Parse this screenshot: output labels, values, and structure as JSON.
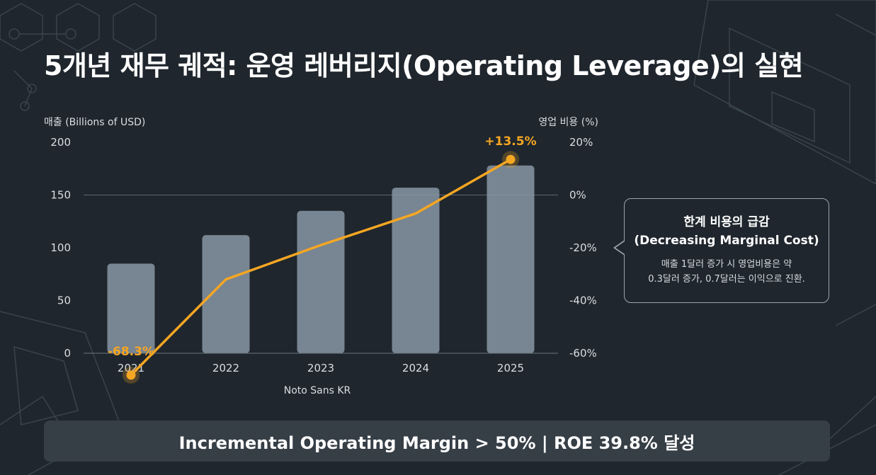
{
  "title": "5개년 재무 궤적: 운영 레버리지(Operating Leverage)의 실현",
  "colors": {
    "background": "#1f262d",
    "bar": "#8896a4",
    "line": "#f5a623",
    "banner": "#363e46"
  },
  "chart_data": {
    "type": "bar+line",
    "categories": [
      "2021",
      "2022",
      "2023",
      "2024",
      "2025"
    ],
    "series": [
      {
        "name": "매출",
        "axis": "left",
        "type": "bar",
        "values": [
          85,
          112,
          135,
          157,
          178
        ]
      },
      {
        "name": "영업 비용",
        "axis": "right",
        "type": "line",
        "values": [
          -68.3,
          -32,
          -19,
          -7,
          13.5
        ]
      }
    ],
    "left_axis": {
      "label": "매출 (Billions of USD)",
      "ylim": [
        0,
        200
      ],
      "ticks": [
        "0",
        "50",
        "100",
        "150",
        "200"
      ]
    },
    "right_axis": {
      "label": "영업 비용 (%)",
      "ylim": [
        -60,
        20
      ],
      "ticks": [
        "-60%",
        "-40%",
        "-20%",
        "0%",
        "20%"
      ]
    },
    "annotations": [
      {
        "category": "2021",
        "text": "-68.3%"
      },
      {
        "category": "2025",
        "text": "+13.5%"
      }
    ],
    "xlabel": "Noto Sans KR"
  },
  "callout": {
    "title": "한계 비용의 급감",
    "subtitle": "(Decreasing Marginal Cost)",
    "body_line1": "매출 1달러 증가 시 영업비용은 약",
    "body_line2": "0.3달러 증가, 0.7달러는 이익으로 진환."
  },
  "banner": {
    "text": "Incremental Operating Margin > 50%  |  ROE 39.8% 달성"
  }
}
